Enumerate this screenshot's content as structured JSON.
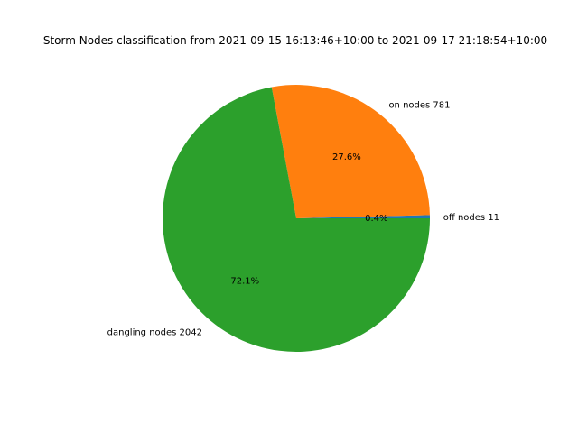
{
  "chart_data": {
    "type": "pie",
    "title": "Storm Nodes classification from 2021-09-15 16:13:46+10:00 to 2021-09-17 21:18:54+10:00",
    "slices": [
      {
        "label": "off nodes 11",
        "value": 11,
        "percent_label": "0.4%",
        "color": "#1f77b4"
      },
      {
        "label": "on nodes 781",
        "value": 781,
        "percent_label": "27.6%",
        "color": "#ff7f0e"
      },
      {
        "label": "dangling nodes 2042",
        "value": 2042,
        "percent_label": "72.1%",
        "color": "#2ca02c"
      }
    ],
    "start_angle_deg": 0,
    "direction": "counterclockwise"
  }
}
